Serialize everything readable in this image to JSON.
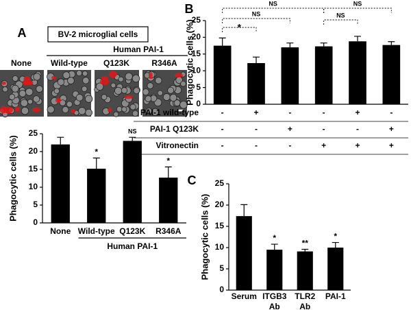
{
  "figure": {
    "image_panel": {
      "title": "BV-2 microglial cells",
      "group_label": "Human PAI-1",
      "labels": [
        "None",
        "Wild-type",
        "Q123K",
        "R346A"
      ]
    }
  },
  "chart_data": [
    {
      "type": "bar",
      "panel": "A",
      "ylabel": "Phagocytic cells (%)",
      "color": "#000000",
      "categories": [
        [
          "None"
        ],
        [
          "Wild-type"
        ],
        [
          "Q123K"
        ],
        [
          "R346A"
        ]
      ],
      "values": [
        22,
        15.2,
        23,
        12.7
      ],
      "errors": [
        2,
        3,
        1,
        3
      ],
      "significance": [
        null,
        "*",
        "NS",
        "*"
      ],
      "group": {
        "label": "Human PAI-1",
        "from": 1,
        "to": 3
      },
      "ylim": [
        0,
        25
      ],
      "yticks": [
        0,
        5,
        10,
        15,
        20,
        25
      ]
    },
    {
      "type": "bar",
      "panel": "B",
      "ylabel": "Phagocytic cells (%)",
      "color": "#000000",
      "values": [
        17.5,
        12.3,
        17,
        17.3,
        18.8,
        17.7
      ],
      "errors": [
        2.3,
        1.8,
        1.3,
        1,
        1.5,
        1
      ],
      "comparisons": [
        {
          "from": 0,
          "to": 1,
          "label": "*"
        },
        {
          "from": 0,
          "to": 2,
          "label": "NS"
        },
        {
          "from": 0,
          "to": 3,
          "label": "NS"
        },
        {
          "from": 3,
          "to": 4,
          "label": "NS"
        },
        {
          "from": 3,
          "to": 5,
          "label": "NS"
        }
      ],
      "conditions": [
        {
          "name": "PAI-1 wild-type",
          "values": [
            "-",
            "+",
            "-",
            "-",
            "+",
            "-"
          ]
        },
        {
          "name": "PAI-1 Q123K",
          "values": [
            "-",
            "-",
            "+",
            "-",
            "-",
            "+"
          ]
        },
        {
          "name": "Vitronectin",
          "values": [
            "-",
            "-",
            "-",
            "+",
            "+",
            "+"
          ]
        }
      ],
      "ylim": [
        0,
        25
      ],
      "yticks": [
        0,
        5,
        10,
        15,
        20,
        25
      ]
    },
    {
      "type": "bar",
      "panel": "C",
      "ylabel": "Phagocytic cells (%)",
      "color": "#000000",
      "categories": [
        [
          "Serum"
        ],
        [
          "ITGB3",
          "Ab"
        ],
        [
          "TLR2",
          "Ab"
        ],
        [
          "PAI-1"
        ]
      ],
      "values": [
        17.4,
        9.5,
        9.1,
        10
      ],
      "errors": [
        2.7,
        1.3,
        0.5,
        1.2
      ],
      "significance": [
        null,
        "*",
        "**",
        "*"
      ],
      "ylim": [
        0,
        25
      ],
      "yticks": [
        0,
        5,
        10,
        15,
        20,
        25
      ]
    }
  ]
}
